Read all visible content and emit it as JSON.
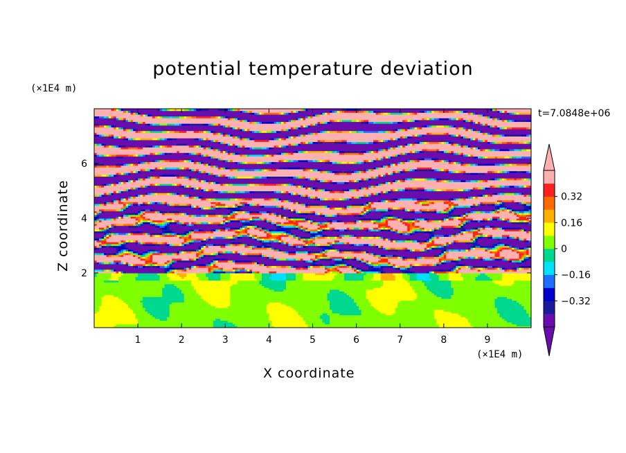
{
  "chart_data": {
    "type": "heatmap",
    "title": "potential temperature deviation",
    "xlabel": "X coordinate",
    "ylabel": "Z coordinate",
    "x_unit": "(×1E4 m)",
    "y_unit": "(×1E4 m)",
    "time_label": "t=7.0848e+06",
    "xlim": [
      0,
      10
    ],
    "ylim": [
      0,
      8
    ],
    "x_ticks": [
      1,
      2,
      3,
      4,
      5,
      6,
      7,
      8,
      9
    ],
    "y_ticks": [
      2,
      4,
      6
    ],
    "colorbar": {
      "levels": [
        -0.48,
        -0.4,
        -0.32,
        -0.24,
        -0.16,
        -0.08,
        0.0,
        0.08,
        0.16,
        0.24,
        0.32,
        0.4,
        0.48
      ],
      "colors": [
        "#6a0dad",
        "#1a1a9c",
        "#0000cd",
        "#1e6fff",
        "#00e0ff",
        "#00d890",
        "#7fff00",
        "#ffff00",
        "#ffb000",
        "#ff6a00",
        "#ff2020",
        "#ffb0b0"
      ],
      "under_color": "#6a0dad",
      "over_color": "#ffb0b0",
      "tick_labels": [
        "0.32",
        "0.16",
        "0",
        "−0.16",
        "−0.32"
      ],
      "tick_values": [
        0.32,
        0.16,
        0.0,
        -0.16,
        -0.32
      ]
    },
    "stable_layer_bands": {
      "z_bottom": 2.0,
      "z_top": 8.0,
      "pattern": "alternating positive (pink, ~+0.45) and negative (purple, ~-0.45) horizontal bands with thin transitional colors at edges; more mixed small-scale structure between z=2 and z=4.5"
    },
    "lower_layer": {
      "z_bottom": 0.0,
      "z_top": 2.0,
      "pattern": "mostly light green (~+0.04) with darker green (~0.0) blobs; turbulent convective region"
    }
  }
}
